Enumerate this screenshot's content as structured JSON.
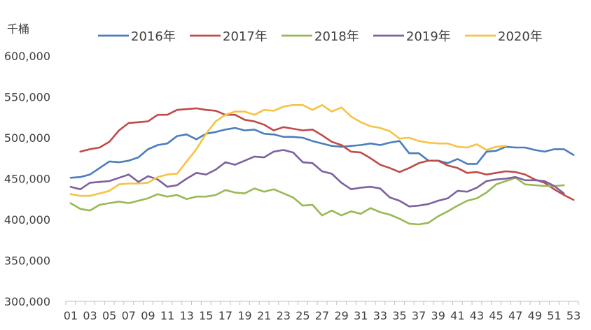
{
  "chart_data": {
    "type": "line",
    "unit_label": "千桶",
    "ylim": [
      300000,
      600000
    ],
    "y_ticks": [
      "300,000",
      "350,000",
      "400,000",
      "450,000",
      "500,000",
      "550,000",
      "600,000"
    ],
    "y_tick_values": [
      300000,
      350000,
      400000,
      450000,
      500000,
      550000,
      600000
    ],
    "x_tick_labels": [
      "01",
      "03",
      "05",
      "07",
      "09",
      "11",
      "13",
      "15",
      "17",
      "19",
      "21",
      "23",
      "25",
      "27",
      "29",
      "31",
      "33",
      "35",
      "37",
      "39",
      "41",
      "43",
      "45",
      "47",
      "49",
      "51",
      "53"
    ],
    "x_range": [
      1,
      53
    ],
    "grid": false,
    "legend_position": "top",
    "series": [
      {
        "name": "2016年",
        "color": "#4a7ebb",
        "x": [
          1,
          2,
          3,
          4,
          5,
          6,
          7,
          8,
          9,
          10,
          11,
          12,
          13,
          14,
          15,
          16,
          17,
          18,
          19,
          20,
          21,
          22,
          23,
          24,
          25,
          26,
          27,
          28,
          29,
          30,
          31,
          32,
          33,
          34,
          35,
          36,
          37,
          38,
          39,
          40,
          41,
          42,
          43,
          44,
          45,
          46,
          47,
          48,
          49,
          50,
          51,
          52,
          53
        ],
        "y": [
          451000,
          452000,
          455000,
          463000,
          471000,
          470000,
          472000,
          476000,
          486000,
          491000,
          493000,
          502000,
          504000,
          498000,
          505000,
          507000,
          510000,
          512000,
          509000,
          510000,
          505000,
          504000,
          501000,
          501000,
          500000,
          496000,
          493000,
          490000,
          489000,
          490000,
          491000,
          493000,
          491000,
          494000,
          496000,
          481000,
          481000,
          472000,
          472000,
          469000,
          474000,
          468000,
          468000,
          483000,
          484000,
          489000,
          488000,
          488000,
          485000,
          483000,
          486000,
          486000,
          479000
        ]
      },
      {
        "name": "2017年",
        "color": "#be4b48",
        "x": [
          2,
          3,
          4,
          5,
          6,
          7,
          8,
          9,
          10,
          11,
          12,
          13,
          14,
          15,
          16,
          17,
          18,
          19,
          20,
          21,
          22,
          23,
          24,
          25,
          26,
          27,
          28,
          29,
          30,
          31,
          32,
          33,
          34,
          35,
          36,
          37,
          38,
          39,
          40,
          41,
          42,
          43,
          44,
          45,
          46,
          47,
          48,
          49,
          50,
          51,
          52,
          53
        ],
        "y": [
          483000,
          486000,
          488000,
          495000,
          509000,
          518000,
          519000,
          520000,
          528000,
          528000,
          534000,
          535000,
          536000,
          534000,
          533000,
          528000,
          528000,
          522000,
          520000,
          516000,
          509000,
          513000,
          511000,
          509000,
          510000,
          503000,
          495000,
          491000,
          483000,
          482000,
          475000,
          467000,
          463000,
          458000,
          463000,
          469000,
          472000,
          472000,
          466000,
          463000,
          457000,
          458000,
          455000,
          457000,
          459000,
          458000,
          455000,
          449000,
          445000,
          437000,
          430000,
          424000
        ]
      },
      {
        "name": "2018年",
        "color": "#98b954",
        "x": [
          1,
          2,
          3,
          4,
          5,
          6,
          7,
          8,
          9,
          10,
          11,
          12,
          13,
          14,
          15,
          16,
          17,
          18,
          19,
          20,
          21,
          22,
          23,
          24,
          25,
          26,
          27,
          28,
          29,
          30,
          31,
          32,
          33,
          34,
          35,
          36,
          37,
          38,
          39,
          40,
          41,
          42,
          43,
          44,
          45,
          46,
          47,
          48,
          49,
          50,
          51,
          52
        ],
        "y": [
          420000,
          413000,
          411000,
          418000,
          420000,
          422000,
          420000,
          423000,
          426000,
          431000,
          428000,
          430000,
          425000,
          428000,
          428000,
          430000,
          436000,
          433000,
          432000,
          438000,
          434000,
          437000,
          432000,
          427000,
          417000,
          418000,
          405000,
          411000,
          405000,
          410000,
          407000,
          414000,
          409000,
          406000,
          401000,
          395000,
          394000,
          396000,
          404000,
          410000,
          417000,
          423000,
          426000,
          433000,
          443000,
          447000,
          451000,
          443000,
          442000,
          441000,
          441000,
          442000
        ]
      },
      {
        "name": "2019年",
        "color": "#7d60a0",
        "x": [
          1,
          2,
          3,
          4,
          5,
          6,
          7,
          8,
          9,
          10,
          11,
          12,
          13,
          14,
          15,
          16,
          17,
          18,
          19,
          20,
          21,
          22,
          23,
          24,
          25,
          26,
          27,
          28,
          29,
          30,
          31,
          32,
          33,
          34,
          35,
          36,
          37,
          38,
          39,
          40,
          41,
          42,
          43,
          44,
          45,
          46,
          47,
          48,
          49,
          50,
          51,
          52
        ],
        "y": [
          440000,
          437000,
          445000,
          446000,
          447000,
          451000,
          455000,
          446000,
          453000,
          449000,
          440000,
          442000,
          450000,
          457000,
          455000,
          461000,
          470000,
          467000,
          472000,
          477000,
          476000,
          483000,
          485000,
          482000,
          470000,
          469000,
          459000,
          456000,
          445000,
          437000,
          439000,
          440000,
          438000,
          427000,
          423000,
          416000,
          417000,
          419000,
          423000,
          426000,
          435000,
          434000,
          439000,
          447000,
          449000,
          450000,
          452000,
          448000,
          448000,
          447000,
          441000,
          432000
        ]
      },
      {
        "name": "2020年",
        "color": "#f6c342",
        "x": [
          1,
          2,
          3,
          4,
          5,
          6,
          7,
          8,
          9,
          10,
          11,
          12,
          13,
          14,
          15,
          16,
          17,
          18,
          19,
          20,
          21,
          22,
          23,
          24,
          25,
          26,
          27,
          28,
          29,
          30,
          31,
          32,
          33,
          34,
          35,
          36,
          37,
          38,
          39,
          40,
          41,
          42,
          43,
          44,
          45,
          46
        ],
        "y": [
          431000,
          429000,
          429000,
          432000,
          435000,
          443000,
          444000,
          444000,
          445000,
          452000,
          455000,
          456000,
          471000,
          486000,
          505000,
          520000,
          528000,
          532000,
          532000,
          528000,
          534000,
          533000,
          538000,
          540000,
          540000,
          534000,
          540000,
          532000,
          537000,
          526000,
          519000,
          514000,
          512000,
          508000,
          499000,
          500000,
          496000,
          494000,
          493000,
          493000,
          489000,
          488000,
          492000,
          485000,
          489000,
          490000
        ]
      }
    ]
  }
}
